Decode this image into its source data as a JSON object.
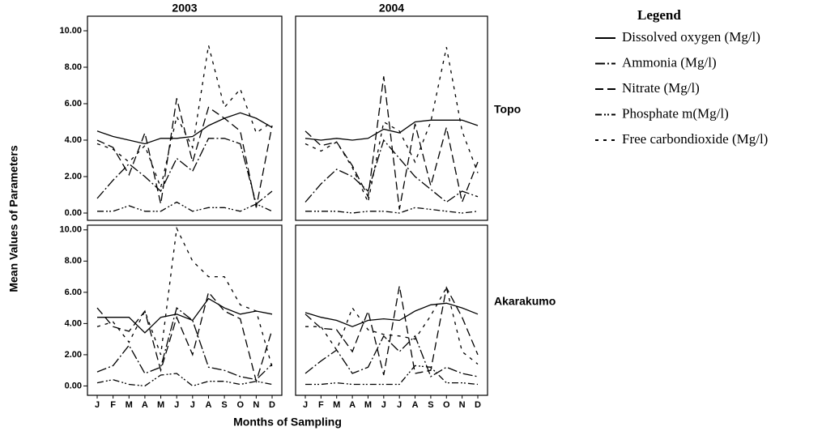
{
  "figure": {
    "y_label": "Mean Values of Parameters",
    "x_label": "Months of Sampling",
    "legend_title": "Legend",
    "legend_position": "right"
  },
  "chart_data": [
    {
      "type": "line",
      "title": "2003",
      "ylim": [
        -0.4,
        10.8
      ],
      "yticks": [
        {
          "value": 0,
          "label": "0.00"
        },
        {
          "value": 2,
          "label": "2.00"
        },
        {
          "value": 4,
          "label": "4.00"
        },
        {
          "value": 6,
          "label": "6.00"
        },
        {
          "value": 8,
          "label": "8.00"
        },
        {
          "value": 10,
          "label": "10.00"
        }
      ],
      "series": [
        {
          "name": "Dissolved oxygen (Mg/l)",
          "values": [
            4.5,
            4.2,
            4.0,
            3.8,
            4.1,
            4.1,
            4.2,
            4.8,
            5.2,
            5.5,
            5.2,
            4.7
          ]
        },
        {
          "name": "Ammonia (Mg/l)",
          "values": [
            0.8,
            1.8,
            2.7,
            2.0,
            1.2,
            3.0,
            2.3,
            4.1,
            4.1,
            3.8,
            0.5,
            1.2
          ]
        },
        {
          "name": "Nitrate (Mg/l)",
          "values": [
            4.0,
            3.6,
            2.1,
            4.4,
            0.5,
            6.3,
            2.8,
            5.8,
            5.2,
            4.5,
            0.3,
            4.8
          ]
        },
        {
          "name": "Phosphate m(Mg/l)",
          "values": [
            0.1,
            0.1,
            0.4,
            0.1,
            0.1,
            0.6,
            0.1,
            0.3,
            0.3,
            0.1,
            0.5,
            0.1
          ]
        },
        {
          "name": "Free carbondioxide (Mg/l)",
          "values": [
            3.8,
            3.5,
            2.8,
            3.7,
            1.4,
            5.3,
            3.6,
            9.2,
            5.8,
            6.8,
            4.4,
            5.0
          ]
        }
      ]
    },
    {
      "type": "line",
      "title": "2004",
      "row_label": "Topo",
      "ylim": [
        -0.4,
        10.8
      ],
      "series": [
        {
          "values": [
            4.1,
            4.0,
            4.1,
            4.0,
            4.1,
            4.6,
            4.4,
            5.0,
            5.1,
            5.1,
            5.1,
            4.8
          ]
        },
        {
          "values": [
            0.6,
            1.6,
            2.4,
            2.0,
            1.2,
            4.0,
            3.0,
            2.0,
            1.3,
            0.6,
            1.2,
            0.9
          ]
        },
        {
          "values": [
            4.5,
            3.7,
            3.9,
            2.6,
            0.9,
            7.5,
            0.2,
            4.9,
            1.5,
            4.7,
            0.6,
            2.8
          ]
        },
        {
          "values": [
            0.1,
            0.1,
            0.1,
            0.0,
            0.1,
            0.1,
            0.0,
            0.3,
            0.2,
            0.1,
            0.0,
            0.1
          ]
        },
        {
          "values": [
            3.8,
            3.4,
            3.9,
            2.5,
            0.6,
            5.0,
            4.5,
            2.8,
            5.0,
            9.1,
            4.5,
            2.2
          ]
        }
      ]
    },
    {
      "type": "line",
      "ylim": [
        -0.6,
        10.3
      ],
      "categories": [
        "J",
        "F",
        "M",
        "A",
        "M",
        "J",
        "J",
        "A",
        "S",
        "O",
        "N",
        "D"
      ],
      "yticks": [
        {
          "value": 0,
          "label": "0.00"
        },
        {
          "value": 2,
          "label": "2.00"
        },
        {
          "value": 4,
          "label": "4.00"
        },
        {
          "value": 6,
          "label": "6.00"
        },
        {
          "value": 8,
          "label": "8.00"
        },
        {
          "value": 10,
          "label": "10.00"
        }
      ],
      "series": [
        {
          "values": [
            4.4,
            4.4,
            4.4,
            3.4,
            4.4,
            4.6,
            4.2,
            5.6,
            5.0,
            4.6,
            4.8,
            4.6
          ]
        },
        {
          "values": [
            0.9,
            1.3,
            2.6,
            0.8,
            1.2,
            5.0,
            4.2,
            1.2,
            1.0,
            0.6,
            0.4,
            1.4
          ]
        },
        {
          "values": [
            5.0,
            3.8,
            3.5,
            4.8,
            1.0,
            4.4,
            2.0,
            6.0,
            4.8,
            4.3,
            0.3,
            3.6
          ]
        },
        {
          "values": [
            0.2,
            0.4,
            0.1,
            0.0,
            0.7,
            0.8,
            0.0,
            0.3,
            0.3,
            0.1,
            0.3,
            0.1
          ]
        },
        {
          "values": [
            3.8,
            4.1,
            2.8,
            4.8,
            2.0,
            10.1,
            8.0,
            7.0,
            7.0,
            5.2,
            4.8,
            1.2
          ]
        }
      ]
    },
    {
      "type": "line",
      "row_label": "Akarakumo",
      "ylim": [
        -0.6,
        10.3
      ],
      "categories": [
        "J",
        "F",
        "M",
        "A",
        "M",
        "J",
        "J",
        "A",
        "S",
        "O",
        "N",
        "D"
      ],
      "series": [
        {
          "values": [
            4.7,
            4.4,
            4.2,
            3.8,
            4.2,
            4.3,
            4.2,
            4.8,
            5.2,
            5.3,
            5.0,
            4.6
          ]
        },
        {
          "values": [
            0.8,
            1.6,
            2.3,
            0.8,
            1.2,
            3.2,
            2.2,
            3.2,
            0.6,
            1.2,
            0.8,
            0.6
          ]
        },
        {
          "values": [
            4.6,
            3.7,
            3.6,
            2.2,
            4.8,
            0.7,
            6.4,
            0.8,
            1.0,
            6.3,
            4.4,
            2.0
          ]
        },
        {
          "values": [
            0.1,
            0.1,
            0.2,
            0.1,
            0.1,
            0.1,
            0.1,
            1.3,
            1.2,
            0.2,
            0.2,
            0.1
          ]
        },
        {
          "values": [
            3.8,
            3.8,
            2.3,
            5.0,
            3.6,
            3.3,
            3.2,
            3.0,
            4.5,
            6.3,
            2.2,
            1.4
          ]
        }
      ]
    }
  ]
}
